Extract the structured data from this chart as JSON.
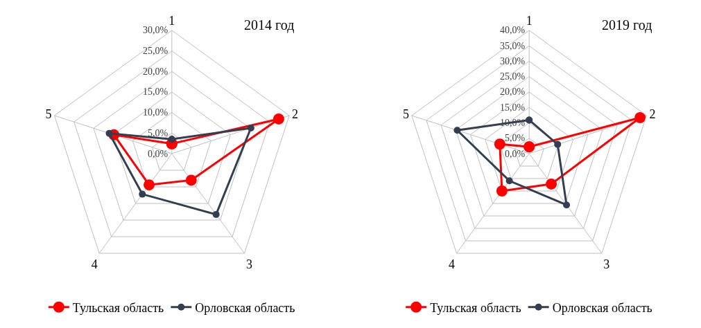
{
  "chart_data": [
    {
      "type": "radar",
      "title": "2014 год",
      "categories": [
        "1",
        "2",
        "3",
        "4",
        "5"
      ],
      "series": [
        {
          "name": "Тульская область",
          "color": "#ff0000",
          "values": [
            2.4,
            27.3,
            8.0,
            9.4,
            14.8
          ]
        },
        {
          "name": "Орловская область",
          "color": "#333f50",
          "values": [
            3.5,
            20.2,
            18.3,
            12.2,
            16.0
          ]
        }
      ],
      "ylim": [
        0,
        30
      ],
      "yticks": [
        {
          "value": 0,
          "label": "0,0%"
        },
        {
          "value": 5,
          "label": "5,0%"
        },
        {
          "value": 10,
          "label": "10,0%"
        },
        {
          "value": 15,
          "label": "15,0%"
        },
        {
          "value": 20,
          "label": "20,0%"
        },
        {
          "value": 25,
          "label": "25,0%"
        },
        {
          "value": 30,
          "label": "30,0%"
        }
      ],
      "grid": true,
      "legend": "bottom",
      "marker": "circle",
      "line_style": "solid"
    },
    {
      "type": "radar",
      "title": "2019 год",
      "categories": [
        "1",
        "2",
        "3",
        "4",
        "5"
      ],
      "series": [
        {
          "name": "Тульская область",
          "color": "#ff0000",
          "values": [
            2.2,
            37.8,
            12.2,
            15.0,
            10.0
          ]
        },
        {
          "name": "Орловская область",
          "color": "#333f50",
          "values": [
            10.9,
            9.7,
            20.6,
            10.9,
            24.5
          ]
        }
      ],
      "ylim": [
        0,
        40
      ],
      "yticks": [
        {
          "value": 0,
          "label": "0,0%"
        },
        {
          "value": 5,
          "label": "5,0%"
        },
        {
          "value": 10,
          "label": "10,0%"
        },
        {
          "value": 15,
          "label": "15,0%"
        },
        {
          "value": 20,
          "label": "20,0%"
        },
        {
          "value": 25,
          "label": "25,0%"
        },
        {
          "value": 30,
          "label": "30,0%"
        },
        {
          "value": 35,
          "label": "35,0%"
        },
        {
          "value": 40,
          "label": "40,0%"
        }
      ],
      "grid": true,
      "legend": "bottom",
      "marker": "circle",
      "line_style": "solid"
    }
  ]
}
